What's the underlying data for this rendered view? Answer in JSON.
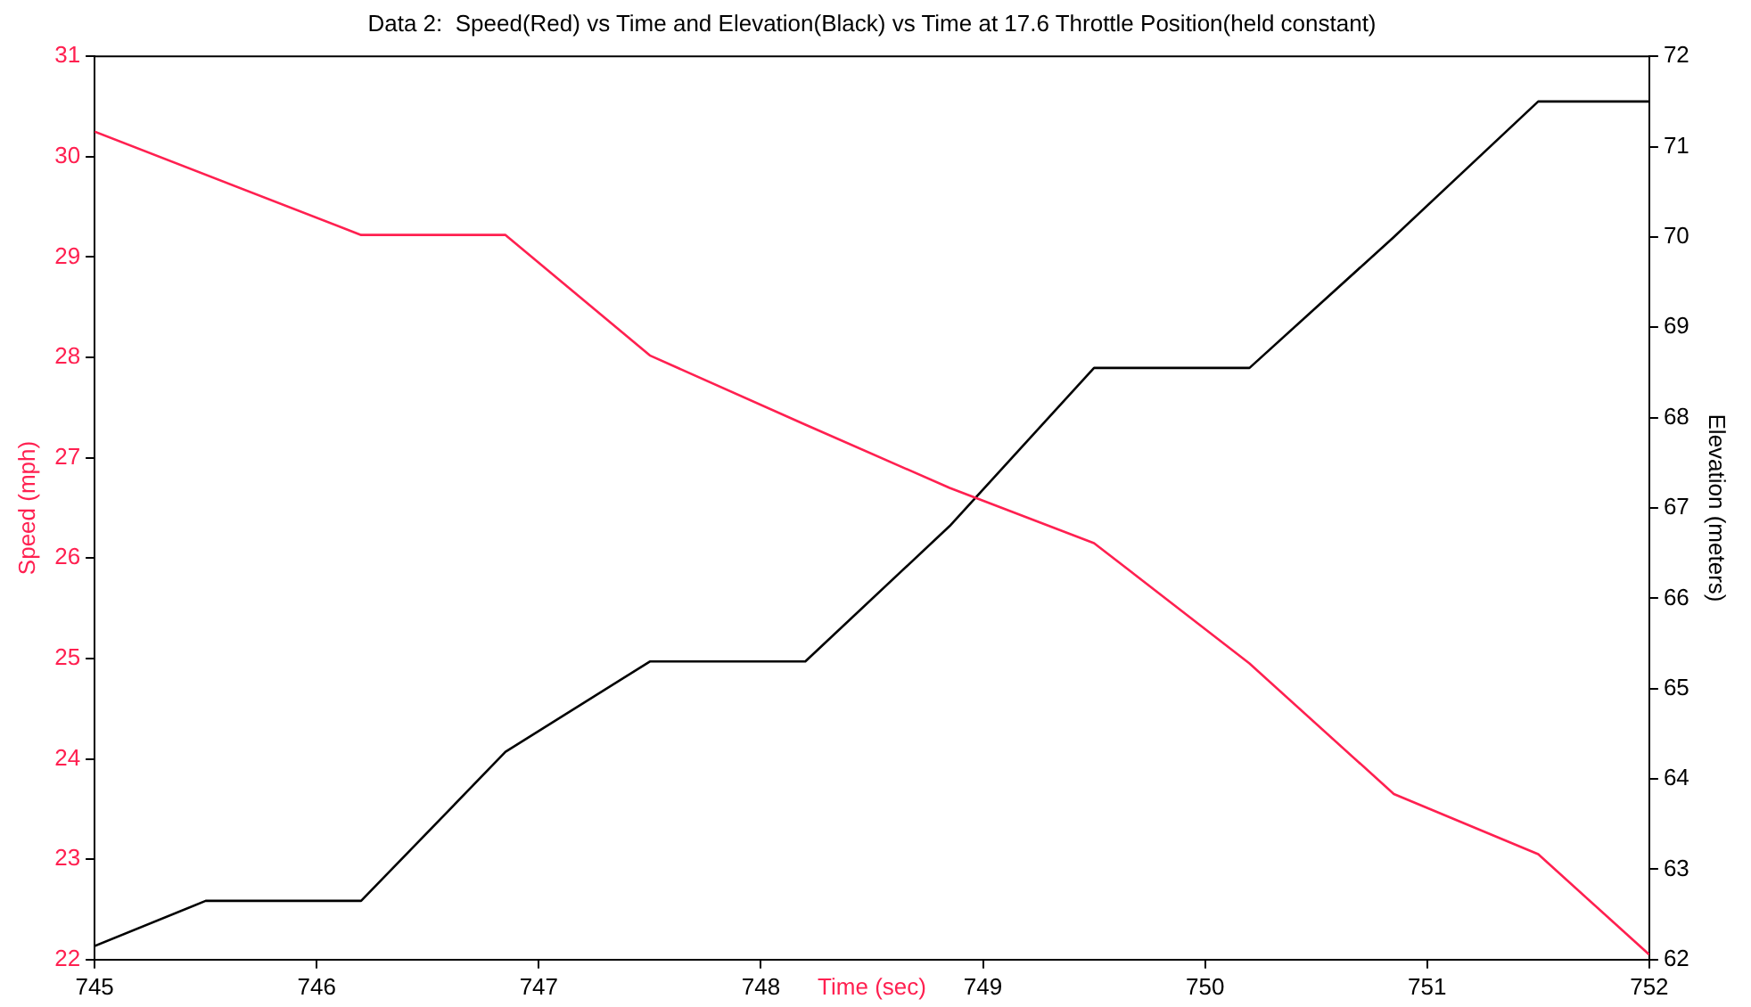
{
  "chart_data": {
    "type": "line",
    "title": "Data 2:  Speed(Red) vs Time and Elevation(Black) vs Time at 17.6 Throttle Position(held constant)",
    "xlabel": "Time (sec)",
    "ylabel": "Speed (mph)",
    "y2label": "Elevation (meters)",
    "xlim": [
      745,
      752
    ],
    "xticks": [
      745,
      746,
      747,
      748,
      749,
      750,
      751,
      752
    ],
    "ylim": [
      22,
      31
    ],
    "yticks": [
      22,
      23,
      24,
      25,
      26,
      27,
      28,
      29,
      30,
      31
    ],
    "y2lim": [
      62,
      72
    ],
    "y2ticks": [
      62,
      63,
      64,
      65,
      66,
      67,
      68,
      69,
      70,
      71,
      72
    ],
    "grid": false,
    "legend": false,
    "marker": "none",
    "line_style": "solid",
    "series": [
      {
        "color": "#ff2050",
        "x": [
          745,
          746.2,
          746.85,
          747.5,
          748.2,
          748.85,
          749.5,
          750.2,
          750.85,
          751.5,
          752
        ],
        "values": [
          30.25,
          29.22,
          29.22,
          28.02,
          27.33,
          26.7,
          26.15,
          24.95,
          23.65,
          23.05,
          22.05
        ]
      },
      {
        "color": "#000000",
        "axis": "y2",
        "x": [
          745,
          745.5,
          746.2,
          746.85,
          747.5,
          748.2,
          748.85,
          749.5,
          750.2,
          750.85,
          751.5,
          752
        ],
        "values": [
          62.15,
          62.65,
          62.65,
          64.3,
          65.3,
          65.3,
          66.8,
          68.55,
          68.55,
          70,
          71.5,
          71.5
        ]
      }
    ]
  }
}
